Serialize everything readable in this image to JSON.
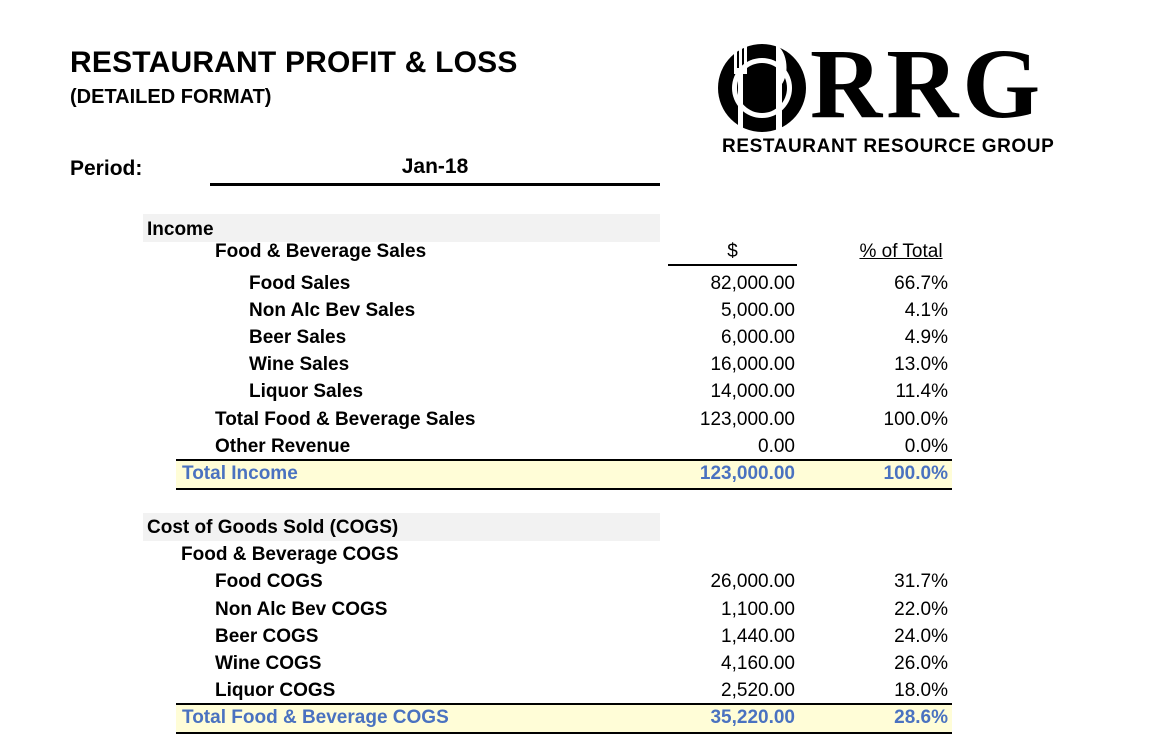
{
  "header": {
    "title": "RESTAURANT PROFIT & LOSS",
    "subtitle": "(DETAILED FORMAT)",
    "period_label": "Period:",
    "period_value": "Jan-18"
  },
  "logo": {
    "wordmark": "RRG",
    "tagline": "RESTAURANT RESOURCE GROUP",
    "icon": "fork-knife-plate-icon"
  },
  "income": {
    "section_title": "Income",
    "group_title": "Food & Beverage Sales",
    "col_amount": "$",
    "col_pct": "% of Total",
    "rows": [
      {
        "label": "Food Sales",
        "amount": "82,000.00",
        "pct": "66.7%"
      },
      {
        "label": "Non Alc Bev Sales",
        "amount": "5,000.00",
        "pct": "4.1%"
      },
      {
        "label": "Beer Sales",
        "amount": "6,000.00",
        "pct": "4.9%"
      },
      {
        "label": "Wine Sales",
        "amount": "16,000.00",
        "pct": "13.0%"
      },
      {
        "label": "Liquor Sales",
        "amount": "14,000.00",
        "pct": "11.4%"
      }
    ],
    "subtotal": {
      "label": "Total Food & Beverage Sales",
      "amount": "123,000.00",
      "pct": "100.0%"
    },
    "other": {
      "label": "Other Revenue",
      "amount": "0.00",
      "pct": "0.0%"
    },
    "total": {
      "label": "Total Income",
      "amount": "123,000.00",
      "pct": "100.0%"
    }
  },
  "cogs": {
    "section_title": "Cost of Goods Sold (COGS)",
    "group_title": "Food & Beverage COGS",
    "rows": [
      {
        "label": "Food COGS",
        "amount": "26,000.00",
        "pct": "31.7%"
      },
      {
        "label": "Non Alc Bev COGS",
        "amount": "1,100.00",
        "pct": "22.0%"
      },
      {
        "label": "Beer COGS",
        "amount": "1,440.00",
        "pct": "24.0%"
      },
      {
        "label": "Wine COGS",
        "amount": "4,160.00",
        "pct": "26.0%"
      },
      {
        "label": "Liquor COGS",
        "amount": "2,520.00",
        "pct": "18.0%"
      }
    ],
    "total": {
      "label": "Total Food & Beverage COGS",
      "amount": "35,220.00",
      "pct": "28.6%"
    }
  },
  "colors": {
    "total_text": "#4a72c0",
    "total_band": "#fffdd7",
    "section_band": "#f2f2f2"
  }
}
